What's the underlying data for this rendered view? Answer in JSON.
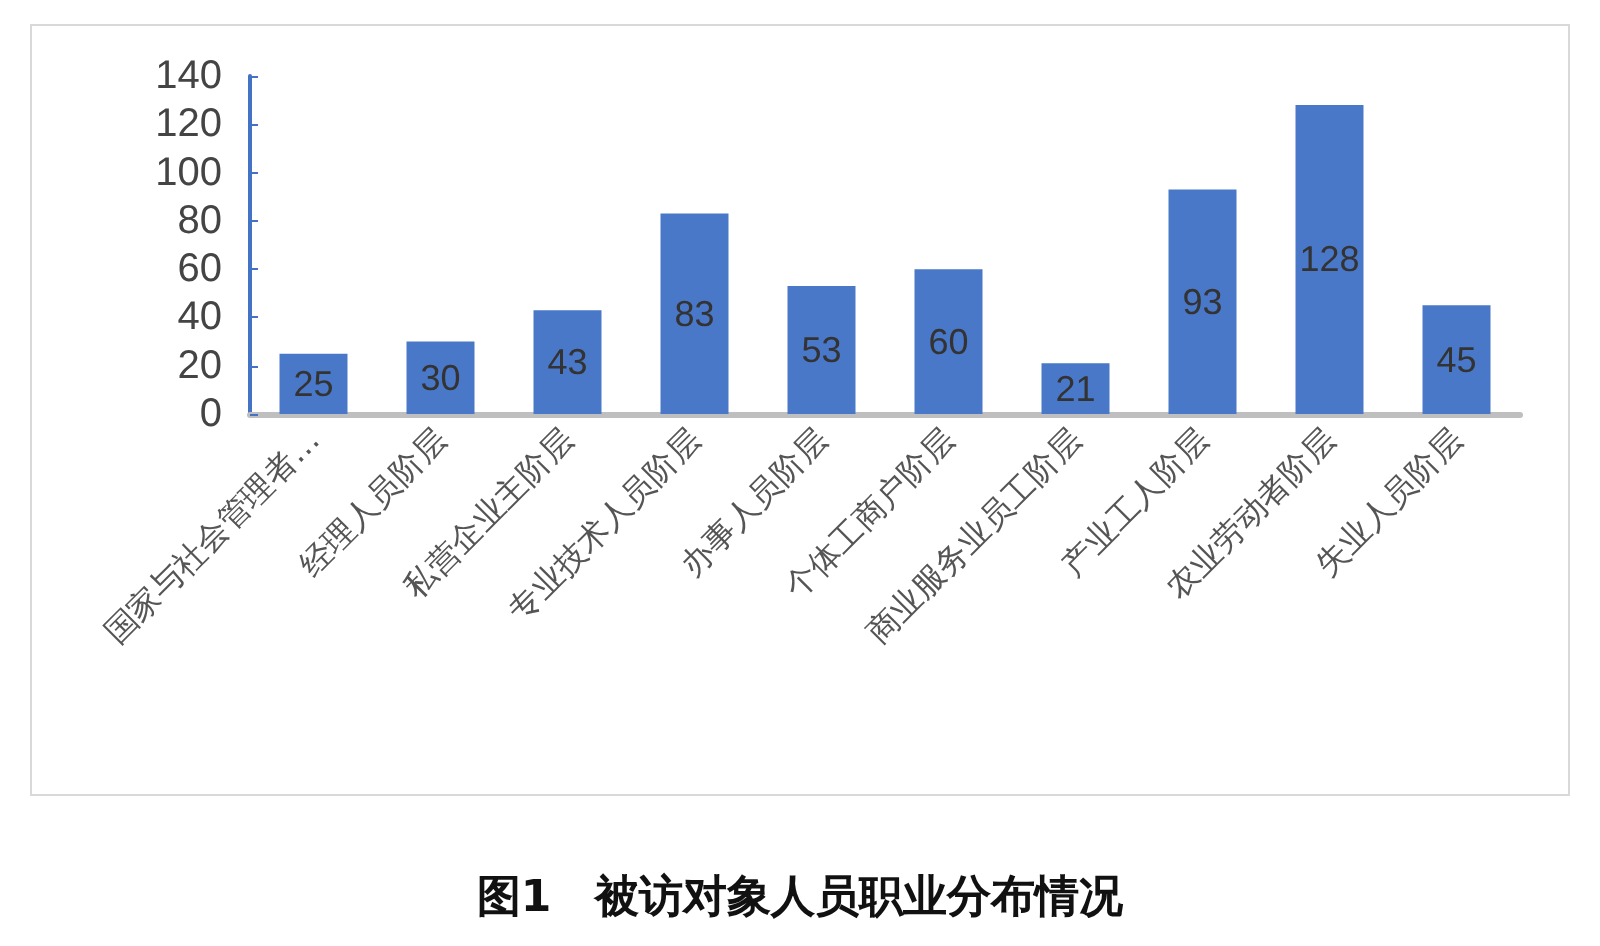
{
  "chart_data": {
    "type": "bar",
    "title": "图1　被访对象人员职业分布情况",
    "categories": [
      "国家与社会管理者…",
      "经理人员阶层",
      "私营企业主阶层",
      "专业技术人员阶层",
      "办事人员阶层",
      "个体工商户阶层",
      "商业服务业员工阶层",
      "产业工人阶层",
      "农业劳动者阶层",
      "失业人员阶层"
    ],
    "values": [
      25,
      30,
      43,
      83,
      53,
      60,
      21,
      93,
      128,
      45
    ],
    "color": "#4a78c8",
    "ylim": [
      0,
      140
    ],
    "yticks": [
      0,
      20,
      40,
      60,
      80,
      100,
      120,
      140
    ],
    "grid": false,
    "data_labels": true
  }
}
